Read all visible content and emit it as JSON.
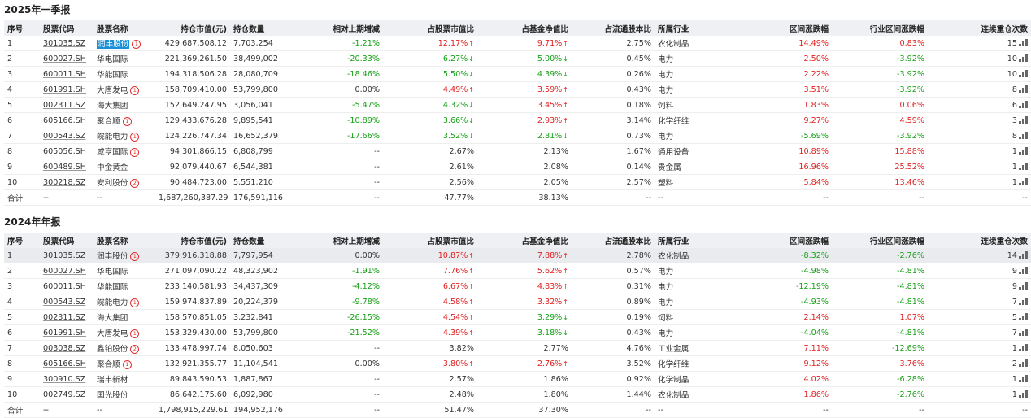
{
  "columns": [
    "序号",
    "股票代码",
    "股票名称",
    "持仓市值(元)",
    "持仓数量",
    "相对上期增减",
    "占股票市值比",
    "占基金净值比",
    "占流通股本比",
    "所属行业",
    "区间涨跌幅",
    "行业区间涨跌幅",
    "连续重仓次数"
  ],
  "sections": [
    {
      "title": "2025年一季报",
      "rows": [
        {
          "no": "1",
          "code": "301035.SZ",
          "name": "润丰股份",
          "badge": "1",
          "value": "429,687,508.12",
          "qty": "7,703,254",
          "chg": "-1.21%",
          "chg_dir": "down",
          "stock_pct": "12.17%",
          "stock_dir": "up",
          "fund_pct": "9.71%",
          "fund_dir": "up",
          "float_pct": "2.75%",
          "industry": "农化制品",
          "ret": "14.49%",
          "ret_dir": "up",
          "ind_ret": "0.83%",
          "ind_dir": "up",
          "times": "15"
        },
        {
          "no": "2",
          "code": "600027.SH",
          "name": "华电国际",
          "badge": "",
          "value": "221,369,261.50",
          "qty": "38,499,002",
          "chg": "-20.33%",
          "chg_dir": "down",
          "stock_pct": "6.27%",
          "stock_dir": "down",
          "fund_pct": "5.00%",
          "fund_dir": "down",
          "float_pct": "0.45%",
          "industry": "电力",
          "ret": "2.50%",
          "ret_dir": "up",
          "ind_ret": "-3.92%",
          "ind_dir": "down",
          "times": "10"
        },
        {
          "no": "3",
          "code": "600011.SH",
          "name": "华能国际",
          "badge": "",
          "value": "194,318,506.28",
          "qty": "28,080,709",
          "chg": "-18.46%",
          "chg_dir": "down",
          "stock_pct": "5.50%",
          "stock_dir": "down",
          "fund_pct": "4.39%",
          "fund_dir": "down",
          "float_pct": "0.26%",
          "industry": "电力",
          "ret": "2.22%",
          "ret_dir": "up",
          "ind_ret": "-3.92%",
          "ind_dir": "down",
          "times": "10"
        },
        {
          "no": "4",
          "code": "601991.SH",
          "name": "大唐发电",
          "badge": "1",
          "value": "158,709,410.00",
          "qty": "53,799,800",
          "chg": "0.00%",
          "chg_dir": "",
          "stock_pct": "4.49%",
          "stock_dir": "up",
          "fund_pct": "3.59%",
          "fund_dir": "up",
          "float_pct": "0.43%",
          "industry": "电力",
          "ret": "3.51%",
          "ret_dir": "up",
          "ind_ret": "-3.92%",
          "ind_dir": "down",
          "times": "8"
        },
        {
          "no": "5",
          "code": "002311.SZ",
          "name": "海大集团",
          "badge": "",
          "value": "152,649,247.95",
          "qty": "3,056,041",
          "chg": "-5.47%",
          "chg_dir": "down",
          "stock_pct": "4.32%",
          "stock_dir": "down",
          "fund_pct": "3.45%",
          "fund_dir": "up",
          "float_pct": "0.18%",
          "industry": "饲料",
          "ret": "1.83%",
          "ret_dir": "up",
          "ind_ret": "0.06%",
          "ind_dir": "up",
          "times": "6"
        },
        {
          "no": "6",
          "code": "605166.SH",
          "name": "聚合顺",
          "badge": "1",
          "value": "129,433,676.28",
          "qty": "9,895,541",
          "chg": "-10.89%",
          "chg_dir": "down",
          "stock_pct": "3.66%",
          "stock_dir": "down",
          "fund_pct": "2.93%",
          "fund_dir": "up",
          "float_pct": "3.14%",
          "industry": "化学纤维",
          "ret": "9.27%",
          "ret_dir": "up",
          "ind_ret": "4.59%",
          "ind_dir": "up",
          "times": "3"
        },
        {
          "no": "7",
          "code": "000543.SZ",
          "name": "皖能电力",
          "badge": "1",
          "value": "124,226,747.34",
          "qty": "16,652,379",
          "chg": "-17.66%",
          "chg_dir": "down",
          "stock_pct": "3.52%",
          "stock_dir": "down",
          "fund_pct": "2.81%",
          "fund_dir": "down",
          "float_pct": "0.73%",
          "industry": "电力",
          "ret": "-5.69%",
          "ret_dir": "down",
          "ind_ret": "-3.92%",
          "ind_dir": "down",
          "times": "8"
        },
        {
          "no": "8",
          "code": "605056.SH",
          "name": "咸亨国际",
          "badge": "1",
          "value": "94,301,866.15",
          "qty": "6,808,799",
          "chg": "--",
          "chg_dir": "",
          "stock_pct": "2.67%",
          "stock_dir": "",
          "fund_pct": "2.13%",
          "fund_dir": "",
          "float_pct": "1.67%",
          "industry": "通用设备",
          "ret": "10.89%",
          "ret_dir": "up",
          "ind_ret": "15.88%",
          "ind_dir": "up",
          "times": "1"
        },
        {
          "no": "9",
          "code": "600489.SH",
          "name": "中金黄金",
          "badge": "",
          "value": "92,079,440.67",
          "qty": "6,544,381",
          "chg": "--",
          "chg_dir": "",
          "stock_pct": "2.61%",
          "stock_dir": "",
          "fund_pct": "2.08%",
          "fund_dir": "",
          "float_pct": "0.14%",
          "industry": "贵金属",
          "ret": "16.96%",
          "ret_dir": "up",
          "ind_ret": "25.52%",
          "ind_dir": "up",
          "times": "1"
        },
        {
          "no": "10",
          "code": "300218.SZ",
          "name": "安利股份",
          "badge": "2",
          "value": "90,484,723.00",
          "qty": "5,551,210",
          "chg": "--",
          "chg_dir": "",
          "stock_pct": "2.56%",
          "stock_dir": "",
          "fund_pct": "2.05%",
          "fund_dir": "",
          "float_pct": "2.57%",
          "industry": "塑料",
          "ret": "5.84%",
          "ret_dir": "up",
          "ind_ret": "13.46%",
          "ind_dir": "up",
          "times": "1"
        }
      ],
      "total": {
        "no": "合计",
        "code": "--",
        "name": "--",
        "value": "1,687,260,387.29",
        "qty": "176,591,116",
        "chg": "--",
        "stock_pct": "47.77%",
        "fund_pct": "38.13%",
        "float_pct": "--",
        "industry": "--",
        "ret": "--",
        "ind_ret": "--",
        "times": "--"
      }
    },
    {
      "title": "2024年年报",
      "rows": [
        {
          "no": "1",
          "code": "301035.SZ",
          "name": "润丰股份",
          "badge": "1",
          "value": "379,916,318.88",
          "qty": "7,797,954",
          "chg": "0.00%",
          "chg_dir": "",
          "stock_pct": "10.87%",
          "stock_dir": "up",
          "fund_pct": "7.88%",
          "fund_dir": "up",
          "float_pct": "2.78%",
          "industry": "农化制品",
          "ret": "-8.32%",
          "ret_dir": "down",
          "ind_ret": "-2.76%",
          "ind_dir": "down",
          "times": "14"
        },
        {
          "no": "2",
          "code": "600027.SH",
          "name": "华电国际",
          "badge": "",
          "value": "271,097,090.22",
          "qty": "48,323,902",
          "chg": "-1.91%",
          "chg_dir": "down",
          "stock_pct": "7.76%",
          "stock_dir": "up",
          "fund_pct": "5.62%",
          "fund_dir": "up",
          "float_pct": "0.57%",
          "industry": "电力",
          "ret": "-4.98%",
          "ret_dir": "down",
          "ind_ret": "-4.81%",
          "ind_dir": "down",
          "times": "9"
        },
        {
          "no": "3",
          "code": "600011.SH",
          "name": "华能国际",
          "badge": "",
          "value": "233,140,581.93",
          "qty": "34,437,309",
          "chg": "-4.12%",
          "chg_dir": "down",
          "stock_pct": "6.67%",
          "stock_dir": "up",
          "fund_pct": "4.83%",
          "fund_dir": "up",
          "float_pct": "0.31%",
          "industry": "电力",
          "ret": "-12.19%",
          "ret_dir": "down",
          "ind_ret": "-4.81%",
          "ind_dir": "down",
          "times": "9"
        },
        {
          "no": "4",
          "code": "000543.SZ",
          "name": "皖能电力",
          "badge": "1",
          "value": "159,974,837.89",
          "qty": "20,224,379",
          "chg": "-9.78%",
          "chg_dir": "down",
          "stock_pct": "4.58%",
          "stock_dir": "up",
          "fund_pct": "3.32%",
          "fund_dir": "up",
          "float_pct": "0.89%",
          "industry": "电力",
          "ret": "-4.93%",
          "ret_dir": "down",
          "ind_ret": "-4.81%",
          "ind_dir": "down",
          "times": "7"
        },
        {
          "no": "5",
          "code": "002311.SZ",
          "name": "海大集团",
          "badge": "",
          "value": "158,570,851.05",
          "qty": "3,232,841",
          "chg": "-26.15%",
          "chg_dir": "down",
          "stock_pct": "4.54%",
          "stock_dir": "up",
          "fund_pct": "3.29%",
          "fund_dir": "down",
          "float_pct": "0.19%",
          "industry": "饲料",
          "ret": "2.14%",
          "ret_dir": "up",
          "ind_ret": "1.07%",
          "ind_dir": "up",
          "times": "5"
        },
        {
          "no": "6",
          "code": "601991.SH",
          "name": "大唐发电",
          "badge": "1",
          "value": "153,329,430.00",
          "qty": "53,799,800",
          "chg": "-21.52%",
          "chg_dir": "down",
          "stock_pct": "4.39%",
          "stock_dir": "up",
          "fund_pct": "3.18%",
          "fund_dir": "down",
          "float_pct": "0.43%",
          "industry": "电力",
          "ret": "-4.04%",
          "ret_dir": "down",
          "ind_ret": "-4.81%",
          "ind_dir": "down",
          "times": "7"
        },
        {
          "no": "7",
          "code": "003038.SZ",
          "name": "鑫铂股份",
          "badge": "2",
          "value": "133,478,997.74",
          "qty": "8,050,603",
          "chg": "--",
          "chg_dir": "",
          "stock_pct": "3.82%",
          "stock_dir": "",
          "fund_pct": "2.77%",
          "fund_dir": "",
          "float_pct": "4.76%",
          "industry": "工业金属",
          "ret": "7.11%",
          "ret_dir": "up",
          "ind_ret": "-12.69%",
          "ind_dir": "down",
          "times": "1"
        },
        {
          "no": "8",
          "code": "605166.SH",
          "name": "聚合顺",
          "badge": "1",
          "value": "132,921,355.77",
          "qty": "11,104,541",
          "chg": "0.00%",
          "chg_dir": "",
          "stock_pct": "3.80%",
          "stock_dir": "up",
          "fund_pct": "2.76%",
          "fund_dir": "up",
          "float_pct": "3.52%",
          "industry": "化学纤维",
          "ret": "9.12%",
          "ret_dir": "up",
          "ind_ret": "3.76%",
          "ind_dir": "up",
          "times": "2"
        },
        {
          "no": "9",
          "code": "300910.SZ",
          "name": "瑞丰新材",
          "badge": "",
          "value": "89,843,590.53",
          "qty": "1,887,867",
          "chg": "--",
          "chg_dir": "",
          "stock_pct": "2.57%",
          "stock_dir": "",
          "fund_pct": "1.86%",
          "fund_dir": "",
          "float_pct": "0.92%",
          "industry": "化学制品",
          "ret": "4.02%",
          "ret_dir": "up",
          "ind_ret": "-6.28%",
          "ind_dir": "down",
          "times": "1"
        },
        {
          "no": "10",
          "code": "002749.SZ",
          "name": "国光股份",
          "badge": "",
          "value": "86,642,175.60",
          "qty": "6,092,980",
          "chg": "--",
          "chg_dir": "",
          "stock_pct": "2.48%",
          "stock_dir": "",
          "fund_pct": "1.80%",
          "fund_dir": "",
          "float_pct": "1.44%",
          "industry": "农化制品",
          "ret": "1.86%",
          "ret_dir": "up",
          "ind_ret": "-2.76%",
          "ind_dir": "down",
          "times": "1"
        }
      ],
      "total": {
        "no": "合计",
        "code": "--",
        "name": "--",
        "value": "1,798,915,229.61",
        "qty": "194,952,176",
        "chg": "--",
        "stock_pct": "51.47%",
        "fund_pct": "37.30%",
        "float_pct": "--",
        "industry": "--",
        "ret": "--",
        "ind_ret": "--",
        "times": "--"
      }
    }
  ],
  "colors": {
    "up": "#e02020",
    "down": "#16a016",
    "header_bg": "#eef0f3",
    "selection": "#1a8fd6"
  }
}
